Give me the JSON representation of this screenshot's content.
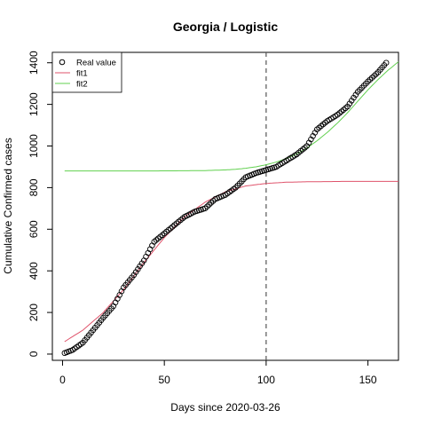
{
  "chart_data": {
    "type": "line",
    "title": "Georgia / Logistic",
    "xlabel": "Days since 2020-03-26",
    "ylabel": "Cumulative Confirmed cases",
    "xlim": [
      -5,
      165
    ],
    "ylim": [
      -30,
      1450
    ],
    "x_ticks": [
      0,
      50,
      100,
      150
    ],
    "y_ticks": [
      0,
      200,
      400,
      600,
      800,
      1000,
      1200,
      1400
    ],
    "vline_x": 100,
    "legend": {
      "position": "top-left",
      "entries": [
        "Real value",
        "fit1",
        "fit2"
      ]
    },
    "colors": {
      "real": "#000000",
      "fit1": "#DF536B",
      "fit2": "#61D04F",
      "vline": "#555555"
    },
    "series": [
      {
        "name": "Real value",
        "style": "points",
        "x": [
          1,
          5,
          10,
          15,
          20,
          25,
          30,
          35,
          40,
          45,
          50,
          55,
          60,
          65,
          70,
          75,
          80,
          85,
          90,
          95,
          100,
          105,
          110,
          115,
          120,
          125,
          130,
          135,
          140,
          145,
          150,
          155,
          159
        ],
        "y": [
          5,
          20,
          55,
          115,
          175,
          230,
          320,
          380,
          450,
          540,
          580,
          620,
          660,
          685,
          700,
          745,
          765,
          800,
          850,
          870,
          885,
          900,
          930,
          960,
          1000,
          1080,
          1120,
          1150,
          1190,
          1260,
          1310,
          1355,
          1400
        ]
      },
      {
        "name": "fit1",
        "style": "line",
        "x": [
          1,
          10,
          20,
          30,
          40,
          50,
          60,
          70,
          80,
          90,
          100,
          110,
          120,
          130,
          140,
          150,
          165
        ],
        "y": [
          60,
          115,
          200,
          310,
          440,
          560,
          660,
          730,
          780,
          808,
          820,
          826,
          828,
          829,
          830,
          830,
          830
        ]
      },
      {
        "name": "fit2",
        "style": "line",
        "x": [
          1,
          20,
          40,
          60,
          70,
          80,
          85,
          90,
          95,
          100,
          105,
          110,
          115,
          120,
          125,
          130,
          135,
          140,
          145,
          150,
          155,
          160,
          165
        ],
        "y": [
          880,
          880,
          880,
          881,
          882,
          885,
          888,
          893,
          900,
          910,
          923,
          940,
          962,
          990,
          1025,
          1065,
          1110,
          1160,
          1215,
          1270,
          1320,
          1365,
          1405
        ]
      }
    ]
  }
}
